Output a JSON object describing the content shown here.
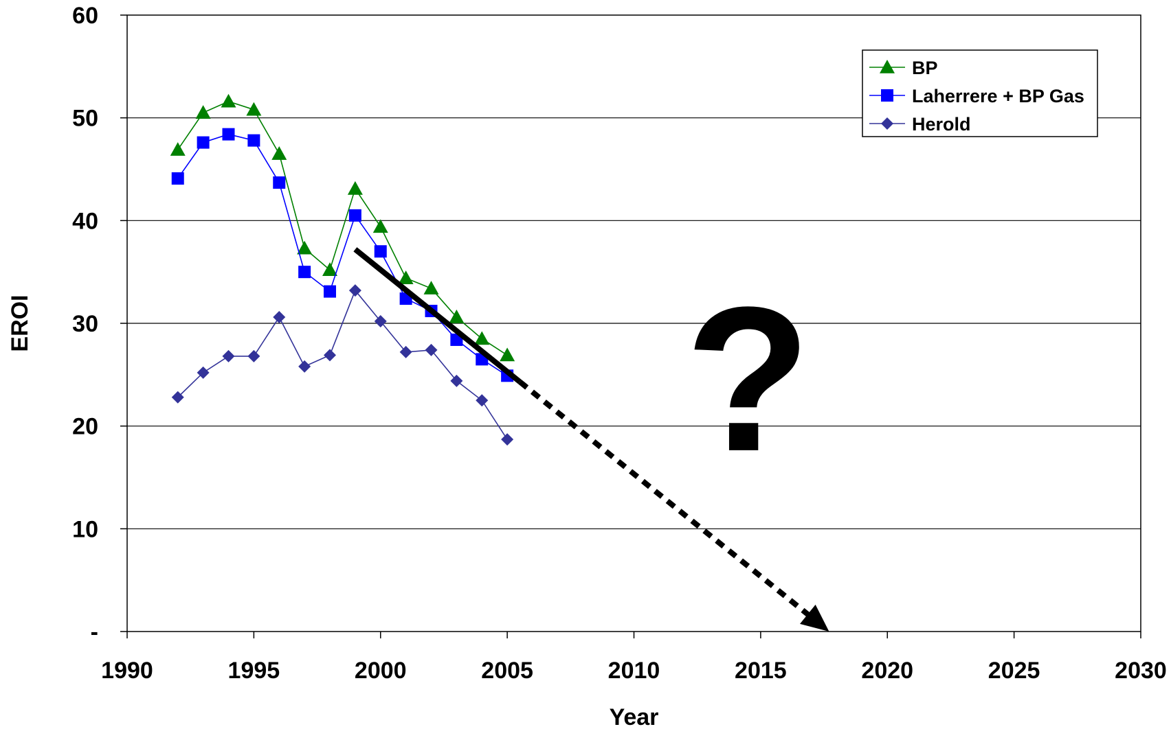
{
  "chart_data": {
    "type": "line",
    "xlabel": "Year",
    "ylabel": "EROI",
    "xlim": [
      1990,
      2030
    ],
    "ylim": [
      0,
      60
    ],
    "x_ticks": [
      1990,
      1995,
      2000,
      2005,
      2010,
      2015,
      2020,
      2025,
      2030
    ],
    "y_ticks": [
      {
        "value": 0,
        "label": "-"
      },
      {
        "value": 10,
        "label": "10"
      },
      {
        "value": 20,
        "label": "20"
      },
      {
        "value": 30,
        "label": "30"
      },
      {
        "value": 40,
        "label": "40"
      },
      {
        "value": 50,
        "label": "50"
      },
      {
        "value": 60,
        "label": "60"
      }
    ],
    "grid": "horizontal",
    "legend_position": "top-right",
    "series": [
      {
        "name": "BP",
        "marker": "triangle",
        "color": "#008000",
        "x": [
          1992,
          1993,
          1994,
          1995,
          1996,
          1997,
          1998,
          1999,
          2000,
          2001,
          2002,
          2003,
          2004,
          2005
        ],
        "values": [
          46.9,
          50.5,
          51.6,
          50.8,
          46.5,
          37.3,
          35.2,
          43.1,
          39.4,
          34.4,
          33.4,
          30.6,
          28.5,
          26.9
        ]
      },
      {
        "name": "Laherrere + BP Gas",
        "marker": "square",
        "color": "#0000ff",
        "x": [
          1992,
          1993,
          1994,
          1995,
          1996,
          1997,
          1998,
          1999,
          2000,
          2001,
          2002,
          2003,
          2004,
          2005
        ],
        "values": [
          44.1,
          47.6,
          48.4,
          47.8,
          43.7,
          35.0,
          33.1,
          40.5,
          37.0,
          32.4,
          31.2,
          28.4,
          26.5,
          24.9
        ]
      },
      {
        "name": "Herold",
        "marker": "diamond",
        "color": "#333399",
        "x": [
          1992,
          1993,
          1994,
          1995,
          1996,
          1997,
          1998,
          1999,
          2000,
          2001,
          2002,
          2003,
          2004,
          2005
        ],
        "values": [
          22.8,
          25.2,
          26.8,
          26.8,
          30.6,
          25.8,
          26.9,
          33.2,
          30.2,
          27.2,
          27.4,
          24.4,
          22.5,
          18.7
        ]
      }
    ],
    "annotations": [
      {
        "kind": "trend-line-solid",
        "from": [
          1999,
          37.2
        ],
        "to": [
          2005.5,
          24.3
        ]
      },
      {
        "kind": "trend-arrow-dashed",
        "from": [
          2005.5,
          24.3
        ],
        "to": [
          2017.7,
          0
        ]
      },
      {
        "kind": "text",
        "text": "?",
        "at": [
          2014.5,
          25
        ]
      }
    ]
  }
}
